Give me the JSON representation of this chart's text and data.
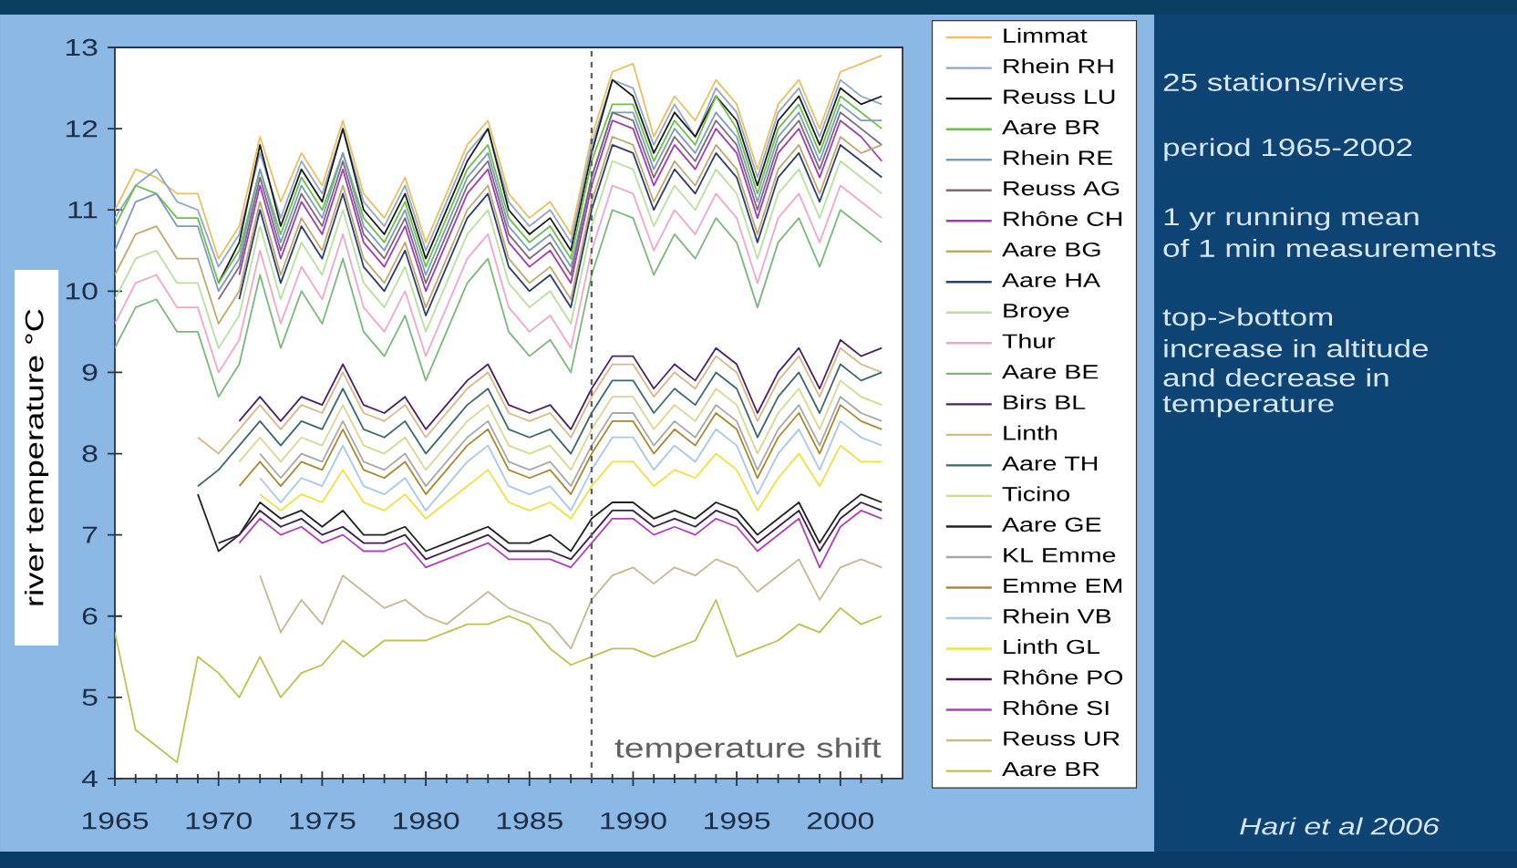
{
  "chart_data": {
    "type": "line",
    "ylabel": "river temperature °C",
    "x": [
      1965,
      1966,
      1967,
      1968,
      1969,
      1970,
      1971,
      1972,
      1973,
      1974,
      1975,
      1976,
      1977,
      1978,
      1979,
      1980,
      1981,
      1982,
      1983,
      1984,
      1985,
      1986,
      1987,
      1988,
      1989,
      1990,
      1991,
      1992,
      1993,
      1994,
      1995,
      1996,
      1997,
      1998,
      1999,
      2000,
      2001,
      2002
    ],
    "xlim": [
      1965,
      2003
    ],
    "ylim": [
      4,
      13
    ],
    "xticks": [
      1965,
      {
        "value": 1966,
        "label": null
      },
      {
        "value": 1967,
        "label": null
      },
      {
        "value": 1968,
        "label": null
      },
      {
        "value": 1969,
        "label": null
      },
      1970,
      {
        "value": 1971,
        "label": null
      },
      {
        "value": 1972,
        "label": null
      },
      {
        "value": 1973,
        "label": null
      },
      {
        "value": 1974,
        "label": null
      },
      1975,
      {
        "value": 1976,
        "label": null
      },
      {
        "value": 1977,
        "label": null
      },
      {
        "value": 1978,
        "label": null
      },
      {
        "value": 1979,
        "label": null
      },
      1980,
      {
        "value": 1981,
        "label": null
      },
      {
        "value": 1982,
        "label": null
      },
      {
        "value": 1983,
        "label": null
      },
      {
        "value": 1984,
        "label": null
      },
      1985,
      {
        "value": 1986,
        "label": null
      },
      {
        "value": 1987,
        "label": null
      },
      {
        "value": 1988,
        "label": null
      },
      {
        "value": 1989,
        "label": null
      },
      1990,
      {
        "value": 1991,
        "label": null
      },
      {
        "value": 1992,
        "label": null
      },
      {
        "value": 1993,
        "label": null
      },
      {
        "value": 1994,
        "label": null
      },
      1995,
      {
        "value": 1996,
        "label": null
      },
      {
        "value": 1997,
        "label": null
      },
      {
        "value": 1998,
        "label": null
      },
      {
        "value": 1999,
        "label": null
      },
      2000,
      {
        "value": 2001,
        "label": null
      },
      {
        "value": 2002,
        "label": null
      }
    ],
    "yticks": [
      4,
      5,
      6,
      7,
      8,
      9,
      10,
      11,
      12,
      13
    ],
    "legend": "right",
    "marker": "none",
    "line_style": "solid",
    "ref_lines": [
      {
        "axis": "x",
        "value": 1988,
        "label": "temperature shift",
        "color": "#606060",
        "line_style": "dashed"
      }
    ],
    "annotations": [
      "25 stations/rivers",
      "period 1965-2002",
      "1 yr running mean",
      "of 1 min measurements",
      "top->bottom",
      "increase in altitude",
      "and decrease in",
      "temperature",
      "Hari et al 2006"
    ],
    "series": [
      {
        "name": "Limmat",
        "color": "#e8c060",
        "values": [
          11.0,
          11.5,
          11.4,
          11.2,
          11.2,
          10.4,
          10.8,
          11.9,
          11.1,
          11.7,
          11.3,
          12.1,
          11.2,
          10.9,
          11.4,
          10.6,
          11.2,
          11.8,
          12.1,
          11.2,
          10.9,
          11.1,
          10.7,
          11.9,
          12.7,
          12.8,
          11.9,
          12.4,
          12.1,
          12.6,
          12.3,
          11.5,
          12.3,
          12.6,
          12.0,
          12.7,
          12.8,
          12.9
        ]
      },
      {
        "name": "Rhein RH",
        "color": "#8fa8c8",
        "values": [
          10.9,
          11.3,
          11.5,
          11.1,
          11.0,
          10.3,
          10.7,
          11.7,
          10.9,
          11.6,
          11.2,
          12.0,
          11.1,
          10.8,
          11.3,
          10.5,
          11.1,
          11.7,
          12.0,
          11.1,
          10.8,
          11.0,
          10.6,
          11.8,
          12.6,
          12.5,
          11.8,
          12.3,
          11.9,
          12.5,
          12.2,
          11.4,
          12.2,
          12.5,
          11.9,
          12.6,
          12.4,
          12.3
        ]
      },
      {
        "name": "Reuss LU",
        "color": "#1a1a1a",
        "values": [
          null,
          null,
          null,
          null,
          null,
          10.1,
          10.6,
          11.8,
          10.8,
          11.5,
          11.1,
          12.0,
          11.0,
          10.7,
          11.2,
          10.4,
          11.0,
          11.6,
          12.0,
          11.0,
          10.7,
          10.9,
          10.5,
          11.7,
          12.6,
          12.4,
          11.7,
          12.2,
          11.9,
          12.4,
          12.1,
          11.3,
          12.1,
          12.4,
          11.8,
          12.5,
          12.3,
          12.4
        ]
      },
      {
        "name": "Aare BR",
        "color": "#6cc04a",
        "values": [
          10.8,
          11.3,
          11.2,
          10.9,
          10.9,
          10.1,
          10.5,
          11.5,
          10.7,
          11.4,
          11.0,
          11.7,
          10.9,
          10.6,
          11.1,
          10.3,
          10.9,
          11.5,
          11.8,
          10.9,
          10.6,
          10.8,
          10.4,
          11.6,
          12.3,
          12.3,
          11.6,
          12.1,
          11.8,
          12.4,
          12.0,
          11.2,
          12.0,
          12.3,
          11.7,
          12.4,
          12.2,
          12.0
        ]
      },
      {
        "name": "Rhein RE",
        "color": "#7b9cc0",
        "values": [
          10.5,
          11.1,
          11.2,
          10.8,
          10.8,
          10.0,
          10.4,
          11.5,
          10.6,
          11.3,
          10.9,
          11.7,
          10.8,
          10.5,
          11.0,
          10.2,
          10.8,
          11.4,
          11.7,
          10.8,
          10.5,
          10.7,
          10.3,
          11.4,
          12.2,
          12.2,
          11.5,
          12.0,
          11.7,
          12.2,
          11.9,
          11.1,
          11.9,
          12.2,
          11.6,
          12.3,
          12.1,
          12.1
        ]
      },
      {
        "name": "Reuss AG",
        "color": "#7a6a78",
        "values": [
          null,
          null,
          null,
          null,
          null,
          9.9,
          10.3,
          11.4,
          10.5,
          11.2,
          10.8,
          11.6,
          10.7,
          10.4,
          10.9,
          10.1,
          10.7,
          11.3,
          11.6,
          10.7,
          10.4,
          10.6,
          10.2,
          11.4,
          12.2,
          12.1,
          11.4,
          11.9,
          11.6,
          12.1,
          11.8,
          11.0,
          11.8,
          12.1,
          11.5,
          12.2,
          12.0,
          11.8
        ]
      },
      {
        "name": "Rhône CH",
        "color": "#a03cb0",
        "values": [
          null,
          null,
          null,
          null,
          null,
          null,
          10.2,
          11.3,
          10.4,
          11.1,
          10.7,
          11.5,
          10.6,
          10.3,
          10.8,
          10.0,
          10.6,
          11.2,
          11.5,
          10.6,
          10.3,
          10.5,
          10.1,
          11.3,
          12.1,
          12.0,
          11.3,
          11.8,
          11.5,
          12.0,
          11.7,
          10.9,
          11.7,
          12.0,
          11.4,
          12.1,
          11.9,
          11.6
        ]
      },
      {
        "name": "Aare BG",
        "color": "#c0a870",
        "values": [
          10.2,
          10.7,
          10.8,
          10.4,
          10.4,
          9.6,
          10.0,
          11.1,
          10.2,
          10.9,
          10.5,
          11.3,
          10.4,
          10.1,
          10.6,
          9.8,
          10.4,
          11.0,
          11.3,
          10.4,
          10.1,
          10.3,
          9.9,
          11.1,
          11.9,
          11.8,
          11.1,
          11.6,
          11.3,
          11.8,
          11.5,
          10.7,
          11.5,
          11.8,
          11.2,
          11.9,
          11.7,
          11.8
        ]
      },
      {
        "name": "Aare HA",
        "color": "#2c3e6c",
        "values": [
          null,
          null,
          null,
          null,
          null,
          null,
          9.9,
          11.0,
          10.1,
          10.8,
          10.4,
          11.2,
          10.3,
          10.0,
          10.5,
          9.7,
          10.3,
          10.9,
          11.2,
          10.3,
          10.0,
          10.2,
          9.8,
          11.0,
          11.8,
          11.7,
          11.0,
          11.5,
          11.2,
          11.7,
          11.4,
          10.6,
          11.4,
          11.7,
          11.1,
          11.8,
          11.6,
          11.4
        ]
      },
      {
        "name": "Broye",
        "color": "#b8e0a0",
        "values": [
          9.9,
          10.4,
          10.5,
          10.1,
          10.1,
          9.3,
          9.7,
          10.8,
          9.9,
          10.6,
          10.2,
          11.0,
          10.1,
          9.8,
          10.3,
          9.5,
          10.1,
          10.7,
          11.0,
          10.1,
          9.8,
          10.0,
          9.6,
          10.8,
          11.6,
          11.5,
          10.8,
          11.3,
          11.0,
          11.5,
          11.2,
          10.4,
          11.2,
          11.5,
          10.9,
          11.6,
          11.4,
          11.2
        ]
      },
      {
        "name": "Thur",
        "color": "#f0a8c8",
        "values": [
          9.6,
          10.1,
          10.2,
          9.8,
          9.8,
          9.0,
          9.4,
          10.5,
          9.6,
          10.3,
          9.9,
          10.7,
          9.8,
          9.5,
          10.0,
          9.2,
          9.8,
          10.4,
          10.7,
          9.8,
          9.5,
          9.7,
          9.3,
          10.5,
          11.3,
          11.2,
          10.5,
          11.0,
          10.7,
          11.2,
          10.9,
          10.1,
          10.9,
          11.2,
          10.6,
          11.3,
          11.1,
          10.9
        ]
      },
      {
        "name": "Aare BE",
        "color": "#7cb87c",
        "values": [
          9.3,
          9.8,
          9.9,
          9.5,
          9.5,
          8.7,
          9.1,
          10.2,
          9.3,
          10.0,
          9.6,
          10.4,
          9.5,
          9.2,
          9.7,
          8.9,
          9.5,
          10.1,
          10.4,
          9.5,
          9.2,
          9.4,
          9.0,
          10.2,
          11.0,
          10.9,
          10.2,
          10.7,
          10.4,
          10.9,
          10.6,
          9.8,
          10.6,
          10.9,
          10.3,
          11.0,
          10.8,
          10.6
        ]
      },
      {
        "name": "Birs BL",
        "color": "#4a2060",
        "values": [
          null,
          null,
          null,
          null,
          null,
          null,
          8.4,
          8.7,
          8.4,
          8.7,
          8.6,
          9.1,
          8.6,
          8.5,
          8.7,
          8.3,
          8.6,
          8.9,
          9.1,
          8.6,
          8.5,
          8.6,
          8.3,
          8.8,
          9.2,
          9.2,
          8.8,
          9.1,
          8.9,
          9.3,
          9.1,
          8.5,
          9.0,
          9.3,
          8.8,
          9.4,
          9.2,
          9.3
        ]
      },
      {
        "name": "Linth",
        "color": "#d8b888",
        "values": [
          null,
          null,
          null,
          null,
          8.2,
          8.0,
          8.3,
          8.6,
          8.3,
          8.6,
          8.5,
          9.0,
          8.5,
          8.4,
          8.6,
          8.2,
          8.5,
          8.8,
          9.0,
          8.5,
          8.4,
          8.5,
          8.2,
          8.7,
          9.1,
          9.1,
          8.7,
          9.0,
          8.8,
          9.2,
          9.0,
          8.4,
          8.9,
          9.2,
          8.7,
          9.3,
          9.1,
          9.0
        ]
      },
      {
        "name": "Aare TH",
        "color": "#3c6868",
        "values": [
          null,
          null,
          null,
          null,
          7.6,
          7.8,
          8.1,
          8.4,
          8.1,
          8.4,
          8.3,
          8.8,
          8.3,
          8.2,
          8.4,
          8.0,
          8.3,
          8.6,
          8.8,
          8.3,
          8.2,
          8.3,
          8.0,
          8.5,
          8.9,
          8.9,
          8.5,
          8.8,
          8.6,
          9.0,
          8.8,
          8.2,
          8.7,
          9.0,
          8.5,
          9.1,
          8.9,
          9.0
        ]
      },
      {
        "name": "Ticino",
        "color": "#d8d890",
        "values": [
          null,
          null,
          null,
          null,
          null,
          null,
          7.9,
          8.2,
          7.9,
          8.2,
          8.1,
          8.6,
          8.1,
          8.0,
          8.2,
          7.8,
          8.1,
          8.4,
          8.6,
          8.1,
          8.0,
          8.1,
          7.8,
          8.3,
          8.7,
          8.7,
          8.3,
          8.6,
          8.4,
          8.8,
          8.6,
          8.0,
          8.5,
          8.8,
          8.3,
          8.9,
          8.7,
          8.6
        ]
      },
      {
        "name": "Aare GE",
        "color": "#202020",
        "values": [
          null,
          null,
          null,
          null,
          7.5,
          6.8,
          7.0,
          7.4,
          7.2,
          7.3,
          7.1,
          7.3,
          7.0,
          7.0,
          7.1,
          6.8,
          6.9,
          7.0,
          7.1,
          6.9,
          6.9,
          7.0,
          6.8,
          7.2,
          7.4,
          7.4,
          7.2,
          7.3,
          7.2,
          7.4,
          7.3,
          7.0,
          7.2,
          7.4,
          6.9,
          7.3,
          7.5,
          7.4
        ]
      },
      {
        "name": "KL Emme",
        "color": "#a8a8a8",
        "values": [
          null,
          null,
          null,
          null,
          null,
          null,
          null,
          8.0,
          7.7,
          8.0,
          7.9,
          8.4,
          7.9,
          7.8,
          8.0,
          7.6,
          7.9,
          8.2,
          8.4,
          7.9,
          7.8,
          7.9,
          7.6,
          8.1,
          8.5,
          8.5,
          8.1,
          8.4,
          8.2,
          8.6,
          8.4,
          7.8,
          8.3,
          8.6,
          8.1,
          8.7,
          8.5,
          8.4
        ]
      },
      {
        "name": "Emme EM",
        "color": "#a88830",
        "values": [
          null,
          null,
          null,
          null,
          null,
          null,
          7.6,
          7.9,
          7.6,
          7.9,
          7.8,
          8.3,
          7.8,
          7.7,
          7.9,
          7.5,
          7.8,
          8.1,
          8.3,
          7.8,
          7.7,
          7.8,
          7.5,
          8.0,
          8.4,
          8.4,
          8.0,
          8.3,
          8.1,
          8.5,
          8.3,
          7.7,
          8.2,
          8.5,
          8.0,
          8.6,
          8.4,
          8.3
        ]
      },
      {
        "name": "Rhein VB",
        "color": "#a8c8e8",
        "values": [
          null,
          null,
          null,
          null,
          null,
          null,
          null,
          7.7,
          7.4,
          7.7,
          7.6,
          8.1,
          7.6,
          7.5,
          7.7,
          7.3,
          7.6,
          7.9,
          8.1,
          7.6,
          7.5,
          7.6,
          7.3,
          7.8,
          8.2,
          8.2,
          7.8,
          8.1,
          7.9,
          8.3,
          8.1,
          7.5,
          8.0,
          8.3,
          7.8,
          8.4,
          8.2,
          8.1
        ]
      },
      {
        "name": "Linth GL",
        "color": "#f0e040",
        "values": [
          null,
          null,
          null,
          null,
          null,
          null,
          null,
          7.5,
          7.3,
          7.5,
          7.4,
          7.8,
          7.4,
          7.3,
          7.5,
          7.2,
          7.4,
          7.6,
          7.8,
          7.4,
          7.3,
          7.4,
          7.2,
          7.6,
          7.9,
          7.9,
          7.6,
          7.8,
          7.7,
          8.0,
          7.8,
          7.3,
          7.7,
          8.0,
          7.6,
          8.1,
          7.9,
          7.9
        ]
      },
      {
        "name": "Rhône PO",
        "color": "#3c1c48",
        "values": [
          null,
          null,
          null,
          null,
          null,
          6.9,
          7.0,
          7.3,
          7.1,
          7.2,
          7.0,
          7.1,
          6.9,
          6.9,
          7.0,
          6.7,
          6.8,
          6.9,
          7.0,
          6.8,
          6.8,
          6.8,
          6.7,
          7.0,
          7.3,
          7.3,
          7.1,
          7.2,
          7.1,
          7.3,
          7.2,
          6.9,
          7.1,
          7.3,
          6.8,
          7.2,
          7.4,
          7.3
        ]
      },
      {
        "name": "Rhône SI",
        "color": "#b040b8",
        "values": [
          null,
          null,
          null,
          null,
          null,
          null,
          6.9,
          7.2,
          7.0,
          7.1,
          6.9,
          7.0,
          6.8,
          6.8,
          6.9,
          6.6,
          6.7,
          6.8,
          6.9,
          6.7,
          6.7,
          6.7,
          6.6,
          6.9,
          7.2,
          7.2,
          7.0,
          7.1,
          7.0,
          7.2,
          7.1,
          6.8,
          7.0,
          7.2,
          6.6,
          7.1,
          7.3,
          7.2
        ]
      },
      {
        "name": "Reuss UR",
        "color": "#c8b890",
        "values": [
          null,
          null,
          null,
          null,
          null,
          null,
          null,
          6.5,
          5.8,
          6.2,
          5.9,
          6.5,
          6.3,
          6.1,
          6.2,
          6.0,
          5.9,
          6.1,
          6.3,
          6.1,
          6.0,
          5.9,
          5.6,
          6.2,
          6.5,
          6.6,
          6.4,
          6.6,
          6.5,
          6.7,
          6.6,
          6.3,
          6.5,
          6.7,
          6.2,
          6.6,
          6.7,
          6.6
        ]
      },
      {
        "name": "Aare BR",
        "color": "#c0c050",
        "values": [
          5.8,
          4.6,
          4.4,
          4.2,
          5.5,
          5.3,
          5.0,
          5.5,
          5.0,
          5.3,
          5.4,
          5.7,
          5.5,
          5.7,
          5.7,
          5.7,
          5.8,
          5.9,
          5.9,
          6.0,
          5.9,
          5.6,
          5.4,
          5.5,
          5.6,
          5.6,
          5.5,
          5.6,
          5.7,
          6.2,
          5.5,
          5.6,
          5.7,
          5.9,
          5.8,
          6.1,
          5.9,
          6.0
        ]
      }
    ]
  }
}
